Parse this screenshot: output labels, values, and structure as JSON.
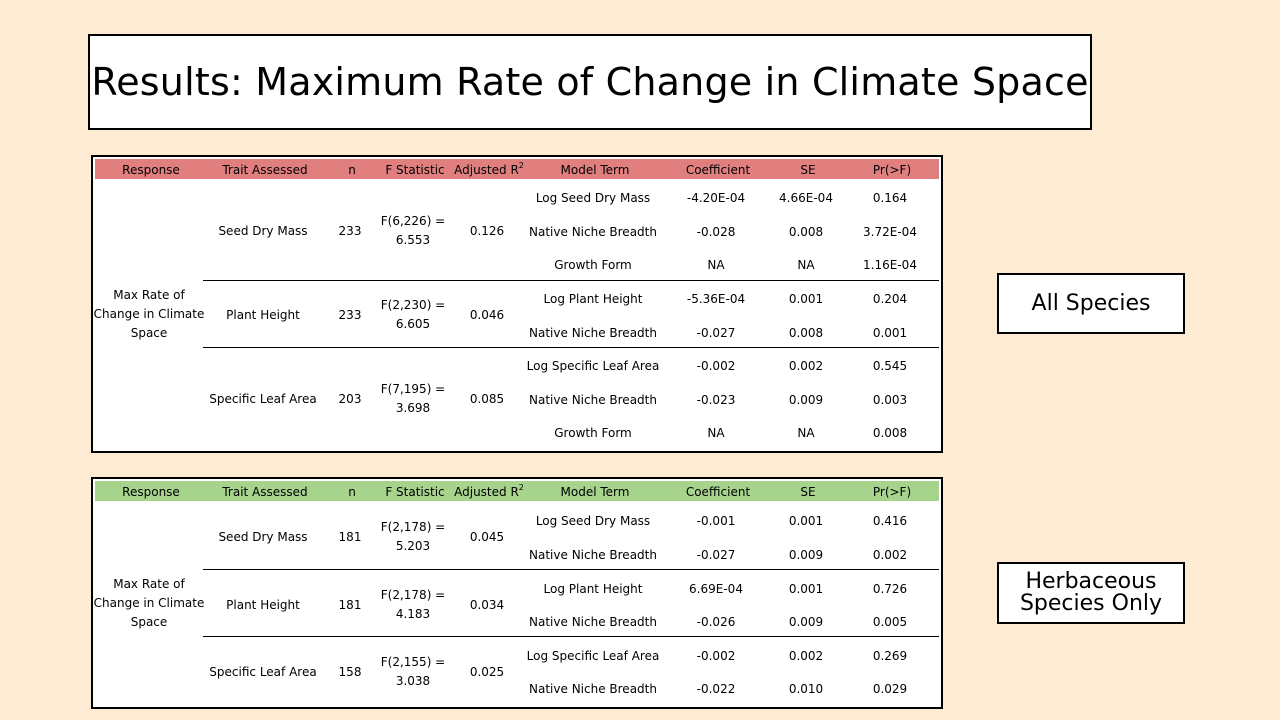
{
  "title": "Results: Maximum Rate of Change in Climate Space",
  "headers": {
    "response": "Response",
    "trait": "Trait Assessed",
    "n": "n",
    "f_stat": "F Statistic",
    "adj_r": "Adjusted R",
    "adj_r_sup": "2",
    "model_term": "Model Term",
    "coefficient": "Coefficient",
    "se": "SE",
    "pr": "Pr(>F)"
  },
  "all_species": {
    "label": "All Species",
    "response_l1": "Max Rate of",
    "response_l2": "Change in Climate",
    "response_l3": "Space",
    "groups": [
      {
        "trait": "Seed Dry Mass",
        "n": "233",
        "f1": "F(6,226) =",
        "f2": "6.553",
        "adj": "0.126",
        "rows": [
          {
            "term": "Log Seed Dry Mass",
            "coef": "-4.20E-04",
            "se": "4.66E-04",
            "pr": "0.164"
          },
          {
            "term": "Native Niche Breadth",
            "coef": "-0.028",
            "se": "0.008",
            "pr": "3.72E-04"
          },
          {
            "term": "Growth Form",
            "coef": "NA",
            "se": "NA",
            "pr": "1.16E-04"
          }
        ]
      },
      {
        "trait": "Plant Height",
        "n": "233",
        "f1": "F(2,230) =",
        "f2": "6.605",
        "adj": "0.046",
        "rows": [
          {
            "term": "Log Plant Height",
            "coef": "-5.36E-04",
            "se": "0.001",
            "pr": "0.204"
          },
          {
            "term": "Native Niche Breadth",
            "coef": "-0.027",
            "se": "0.008",
            "pr": "0.001"
          }
        ]
      },
      {
        "trait": "Specific Leaf Area",
        "n": "203",
        "f1": "F(7,195) =",
        "f2": "3.698",
        "adj": "0.085",
        "rows": [
          {
            "term": "Log Specific Leaf Area",
            "coef": "-0.002",
            "se": "0.002",
            "pr": "0.545"
          },
          {
            "term": "Native Niche Breadth",
            "coef": "-0.023",
            "se": "0.009",
            "pr": "0.003"
          },
          {
            "term": "Growth Form",
            "coef": "NA",
            "se": "NA",
            "pr": "0.008"
          }
        ]
      }
    ]
  },
  "herbaceous": {
    "label_l1": "Herbaceous",
    "label_l2": "Species Only",
    "response_l1": "Max Rate of",
    "response_l2": "Change in Climate",
    "response_l3": "Space",
    "groups": [
      {
        "trait": "Seed Dry Mass",
        "n": "181",
        "f1": "F(2,178) =",
        "f2": "5.203",
        "adj": "0.045",
        "rows": [
          {
            "term": "Log Seed Dry Mass",
            "coef": "-0.001",
            "se": "0.001",
            "pr": "0.416"
          },
          {
            "term": "Native Niche Breadth",
            "coef": "-0.027",
            "se": "0.009",
            "pr": "0.002"
          }
        ]
      },
      {
        "trait": "Plant Height",
        "n": "181",
        "f1": "F(2,178) =",
        "f2": "4.183",
        "adj": "0.034",
        "rows": [
          {
            "term": "Log Plant Height",
            "coef": "6.69E-04",
            "se": "0.001",
            "pr": "0.726"
          },
          {
            "term": "Native Niche Breadth",
            "coef": "-0.026",
            "se": "0.009",
            "pr": "0.005"
          }
        ]
      },
      {
        "trait": "Specific Leaf Area",
        "n": "158",
        "f1": "F(2,155) =",
        "f2": "3.038",
        "adj": "0.025",
        "rows": [
          {
            "term": "Log Specific Leaf Area",
            "coef": "-0.002",
            "se": "0.002",
            "pr": "0.269"
          },
          {
            "term": "Native Niche Breadth",
            "coef": "-0.022",
            "se": "0.010",
            "pr": "0.029"
          }
        ]
      }
    ]
  }
}
